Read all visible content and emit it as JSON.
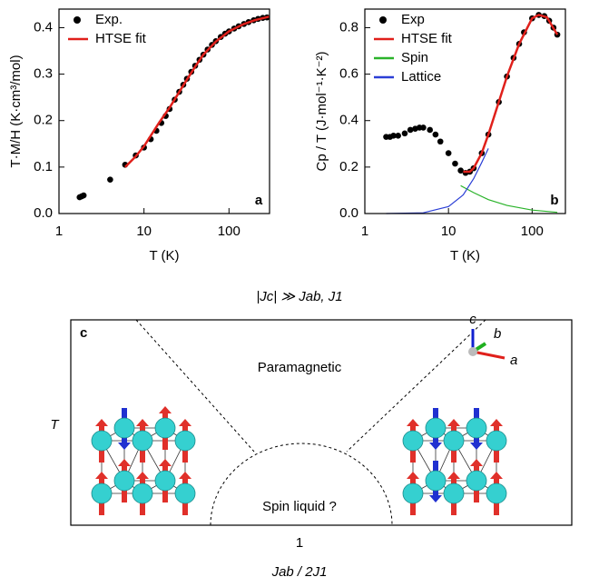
{
  "chart_data": [
    {
      "type": "line",
      "panel_label": "a",
      "xlabel": "T (K)",
      "ylabel": "T·M/H (K·cm³/mol)",
      "xlog": true,
      "xlim": [
        1,
        300
      ],
      "xticks": [
        1,
        10,
        100
      ],
      "ylim": [
        0,
        0.44
      ],
      "yticks": [
        {
          "value": 0,
          "label": "0.0"
        },
        0.1,
        0.2,
        0.3,
        0.4
      ],
      "legend": "upper left",
      "series": [
        {
          "name": "Exp.",
          "color": "#000000",
          "style": "markers",
          "x": [
            1.75,
            1.85,
            1.95,
            4,
            6,
            8,
            10,
            12,
            14,
            16,
            18,
            20,
            23,
            26,
            29,
            32,
            36,
            40,
            45,
            50,
            56,
            63,
            70,
            80,
            90,
            100,
            115,
            130,
            150,
            170,
            195,
            220,
            250,
            280
          ],
          "values": [
            0.035,
            0.037,
            0.039,
            0.073,
            0.105,
            0.125,
            0.142,
            0.16,
            0.178,
            0.195,
            0.21,
            0.225,
            0.245,
            0.262,
            0.277,
            0.29,
            0.305,
            0.318,
            0.331,
            0.342,
            0.353,
            0.363,
            0.371,
            0.38,
            0.387,
            0.392,
            0.398,
            0.403,
            0.408,
            0.412,
            0.416,
            0.419,
            0.421,
            0.422
          ]
        },
        {
          "name": "HTSE fit",
          "color": "#e0201b",
          "style": "line",
          "x": [
            6,
            8,
            10,
            15,
            20,
            30,
            40,
            50,
            70,
            100,
            150,
            200,
            300
          ],
          "values": [
            0.1,
            0.123,
            0.145,
            0.195,
            0.228,
            0.28,
            0.316,
            0.342,
            0.37,
            0.392,
            0.408,
            0.416,
            0.424
          ]
        }
      ]
    },
    {
      "type": "line",
      "panel_label": "b",
      "xlabel": "T (K)",
      "ylabel": "Cp / T (J·mol⁻¹·K⁻²)",
      "xlog": true,
      "xlim": [
        1,
        250
      ],
      "xticks": [
        1,
        10,
        100
      ],
      "ylim": [
        0,
        0.88
      ],
      "yticks": [
        {
          "value": 0,
          "label": "0.0"
        },
        0.2,
        0.4,
        0.6,
        0.8
      ],
      "legend": "upper left",
      "series": [
        {
          "name": "Exp",
          "color": "#000000",
          "style": "markers",
          "x": [
            1.8,
            2,
            2.2,
            2.5,
            3,
            3.5,
            4,
            4.5,
            5,
            6,
            7,
            8,
            10,
            12,
            14,
            16,
            18,
            20,
            25,
            30,
            40,
            50,
            60,
            70,
            80,
            100,
            120,
            140,
            160,
            180,
            200
          ],
          "values": [
            0.33,
            0.33,
            0.335,
            0.335,
            0.345,
            0.36,
            0.365,
            0.37,
            0.37,
            0.36,
            0.34,
            0.31,
            0.26,
            0.215,
            0.185,
            0.175,
            0.18,
            0.195,
            0.26,
            0.34,
            0.48,
            0.59,
            0.67,
            0.73,
            0.78,
            0.84,
            0.855,
            0.85,
            0.83,
            0.8,
            0.77
          ]
        },
        {
          "name": "HTSE fit",
          "color": "#e0201b",
          "style": "line",
          "x": [
            15,
            18,
            20,
            25,
            30,
            40,
            50,
            70,
            100,
            120,
            150,
            200
          ],
          "values": [
            0.18,
            0.18,
            0.195,
            0.26,
            0.34,
            0.48,
            0.59,
            0.73,
            0.84,
            0.855,
            0.845,
            0.77
          ]
        },
        {
          "name": "Spin",
          "color": "#2ab32a",
          "style": "line",
          "x": [
            14,
            20,
            30,
            50,
            100,
            200
          ],
          "values": [
            0.12,
            0.09,
            0.06,
            0.035,
            0.015,
            0.005
          ]
        },
        {
          "name": "Lattice",
          "color": "#2b3fd6",
          "style": "line",
          "x": [
            1.8,
            5,
            10,
            15,
            20,
            25,
            30
          ],
          "values": [
            0,
            0.003,
            0.03,
            0.08,
            0.15,
            0.22,
            0.28
          ]
        }
      ]
    }
  ],
  "diagram": {
    "title": "|Jc| ≫ Jab, J1",
    "panel_label": "c",
    "region_top": "Paramagnetic",
    "region_bottom": "Spin liquid ?",
    "y_label": "T",
    "x_tick": "1",
    "x_label": "Jab / 2J1",
    "axes": {
      "c": "c",
      "b": "b",
      "a": "a"
    }
  }
}
